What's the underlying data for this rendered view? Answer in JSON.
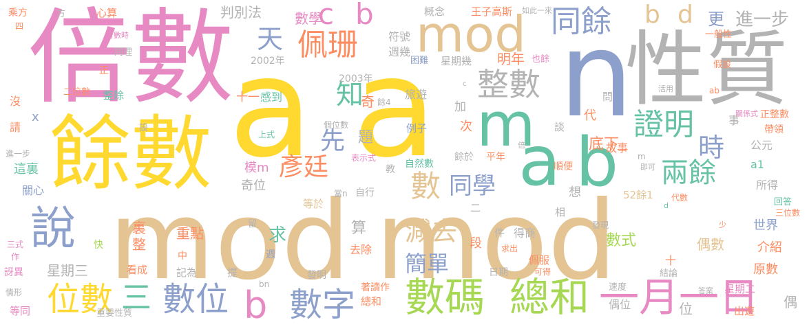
{
  "palette": {
    "pink": "#e78ac3",
    "yellow": "#ffd92f",
    "tan": "#e5c494",
    "gray": "#b3b3b3",
    "blue": "#8da0cb",
    "green": "#66c2a5",
    "lime": "#a6d854",
    "orange": "#fc8d62"
  },
  "words": {
    "w1": "mod",
    "w2": "mod",
    "w3": "a",
    "w4": "a",
    "w5": "倍數",
    "w6": "餘數",
    "w7": "n",
    "w8": "性質",
    "w9": "mod",
    "w10": "m",
    "w11": "a",
    "w12": "b",
    "w13": "說",
    "w14": "整數",
    "w15": "數碼",
    "w16": "總和",
    "w17": "一月一日",
    "w18": "位數",
    "w19": "數位",
    "w20": "數字",
    "w21": "三",
    "w22": "b",
    "w23": "同餘",
    "w24": "佩珊",
    "w25": "天",
    "w26": "c",
    "w27": "b",
    "w28": "b",
    "w29": "d",
    "w30": "證明",
    "w31": "兩餘",
    "w32": "數",
    "w33": "同學",
    "w34": "彥廷",
    "w35": "知",
    "w36": "先",
    "w37": "時",
    "w38": "減去",
    "w39": "簡單",
    "w40": "數學",
    "w41": "判別法",
    "w42": "更",
    "w43": "進一步",
    "w44": "概念",
    "w45": "王子高斯",
    "w46": "明年",
    "w47": "符號",
    "w48": "週幾",
    "w49": "星期幾",
    "w50": "困難",
    "w51": "也餘",
    "w52": "假設",
    "w53": "一般性",
    "w54": "如此一來",
    "w55": "2002年",
    "w56": "2003年",
    "w57": "十一",
    "w58": "感到",
    "w59": "奇",
    "w60": "餘4",
    "w61": "旅遊",
    "w62": "加",
    "w63": "問",
    "w64": "活用",
    "w65": "ab",
    "w66": "二位數",
    "w67": "整除",
    "w68": "正",
    "w69": "同理",
    "w70": "奇數時",
    "w71": "心算",
    "w72": "方",
    "w73": "乘方",
    "w74": "四",
    "w75": "沒",
    "w76": "請",
    "w77": "x",
    "w78": "設",
    "w79": "進一步",
    "w80": "這裏",
    "w81": "關心",
    "w82": "模m",
    "w83": "奇位",
    "w84": "題",
    "w85": "上式",
    "w86": "表示式",
    "w87": "個位數",
    "w88": "當n",
    "w89": "等於",
    "w90": "教",
    "w91": "自行",
    "w92": "例子",
    "w93": "次",
    "w94": "代",
    "w95": "底下",
    "w96": "自然數",
    "w97": "餘於",
    "w98": "平年",
    "w99": "倍",
    "w100": "順便",
    "w101": "想",
    "w102": "52餘1",
    "w103": "代數",
    "w104": "故事",
    "w105": "即可",
    "w106": "事",
    "w107": "談",
    "w108": "帶領",
    "w109": "正整數",
    "w110": "關係式",
    "w111": "公元",
    "w112": "a1",
    "w113": "所得",
    "w114": "回答",
    "w115": "三位數",
    "w116": "世界",
    "w117": "介紹",
    "w118": "原數",
    "w119": "偶數",
    "w120": "數式",
    "w121": "少",
    "w122": "求",
    "w123": "算",
    "w124": "二",
    "w125": "相",
    "w126": "件",
    "w127": "得商",
    "w128": "發現",
    "w129": "求出",
    "w130": "佩服",
    "w131": "可得",
    "w132": "日期",
    "w133": "段",
    "w134": "去除",
    "w135": "週",
    "w136": "留",
    "w137": "重點",
    "w138": "裏",
    "w139": "整",
    "w140": "快",
    "w141": "中",
    "w142": "看成",
    "w143": "記為",
    "w144": "提",
    "w145": "星期三",
    "w146": "三式",
    "w147": "作",
    "w148": "訝異",
    "w149": "情形",
    "w150": "等同",
    "w151": "重要性質",
    "w152": "bn",
    "w153": "發明",
    "w154": "著讀作",
    "w155": "總和",
    "w156": "速度",
    "w157": "偶位",
    "w158": "十",
    "w159": "結論",
    "w160": "答案",
    "w161": "星期二",
    "w162": "出遊",
    "w163": "位",
    "w164": "偶",
    "w165": "c",
    "w166": "m",
    "w167": "d"
  }
}
